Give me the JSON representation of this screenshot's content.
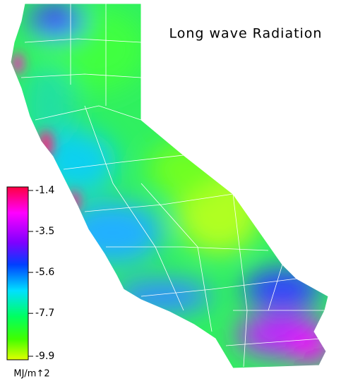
{
  "title": "Long wave Radiation",
  "colorbar": {
    "ticks": [
      -1.4,
      -3.5,
      -5.6,
      -7.7,
      -9.9
    ],
    "unit": "MJ/m↑2"
  }
}
